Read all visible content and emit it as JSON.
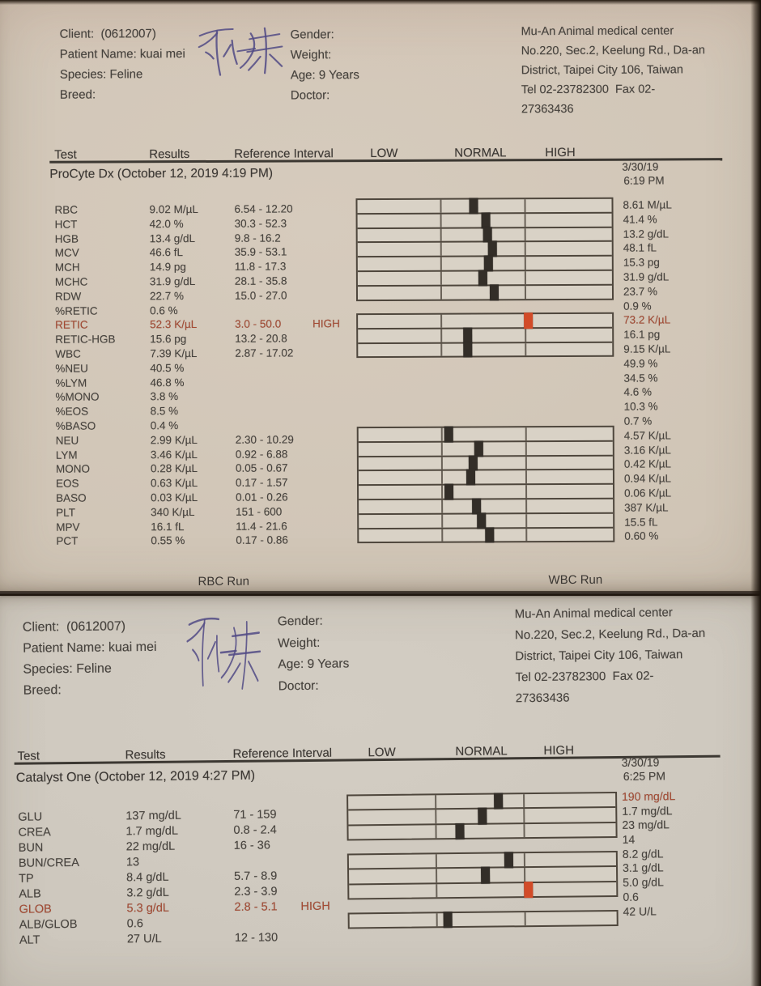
{
  "report": {
    "pages": [
      {
        "analyzer": "ProCyte Dx",
        "patient_left": [
          "Client:  (0612007)",
          "Patient Name: kuai mei",
          "Species: Feline",
          "Breed:"
        ],
        "patient_mid": [
          "Gender:",
          "Weight:",
          "Age: 9 Years",
          "Doctor:"
        ],
        "handwriting": "乖妹",
        "clinic": [
          "Mu-An Animal medical center",
          "No.220, Sec.2, Keelung Rd., Da-an",
          "District, Taipei City 106, Taiwan",
          "Tel 02-23782300  Fax 02-",
          "27363436"
        ],
        "columns": {
          "test": "Test",
          "results": "Results",
          "reference": "Reference Interval",
          "low": "LOW",
          "normal": "NORMAL",
          "high": "HIGH"
        },
        "panel_title": "ProCyte Dx (October 12, 2019 4:19 PM)",
        "previous": {
          "date": "3/30/19",
          "time": "6:19 PM"
        },
        "rows": [
          {
            "test": "RBC",
            "result": "9.02 M/µL",
            "ref": "6.54 - 12.20",
            "flag": "",
            "prev": "8.61 M/µL"
          },
          {
            "test": "HCT",
            "result": "42.0 %",
            "ref": "30.3 - 52.3",
            "flag": "",
            "prev": "41.4 %"
          },
          {
            "test": "HGB",
            "result": "13.4 g/dL",
            "ref": "9.8 - 16.2",
            "flag": "",
            "prev": "13.2 g/dL"
          },
          {
            "test": "MCV",
            "result": "46.6 fL",
            "ref": "35.9 - 53.1",
            "flag": "",
            "prev": "48.1 fL"
          },
          {
            "test": "MCH",
            "result": "14.9 pg",
            "ref": "11.8 - 17.3",
            "flag": "",
            "prev": "15.3 pg"
          },
          {
            "test": "MCHC",
            "result": "31.9 g/dL",
            "ref": "28.1 - 35.8",
            "flag": "",
            "prev": "31.9 g/dL"
          },
          {
            "test": "RDW",
            "result": "22.7 %",
            "ref": "15.0 - 27.0",
            "flag": "",
            "prev": "23.7 %"
          },
          {
            "test": "%RETIC",
            "result": "0.6 %",
            "ref": "",
            "flag": "",
            "prev": "0.9 %"
          },
          {
            "test": "RETIC",
            "result": "52.3 K/µL",
            "ref": "3.0 - 50.0",
            "flag": "HIGH",
            "prev": "73.2 K/µL",
            "alert": true,
            "prev_alert": true
          },
          {
            "test": "RETIC-HGB",
            "result": "15.6 pg",
            "ref": "13.2 - 20.8",
            "flag": "",
            "prev": "16.1 pg"
          },
          {
            "test": "WBC",
            "result": "7.39 K/µL",
            "ref": "2.87 - 17.02",
            "flag": "",
            "prev": "9.15 K/µL"
          },
          {
            "test": "%NEU",
            "result": "40.5 %",
            "ref": "",
            "flag": "",
            "prev": "49.9 %"
          },
          {
            "test": "%LYM",
            "result": "46.8 %",
            "ref": "",
            "flag": "",
            "prev": "34.5 %"
          },
          {
            "test": "%MONO",
            "result": "3.8 %",
            "ref": "",
            "flag": "",
            "prev": "4.6 %"
          },
          {
            "test": "%EOS",
            "result": "8.5 %",
            "ref": "",
            "flag": "",
            "prev": "10.3 %"
          },
          {
            "test": "%BASO",
            "result": "0.4 %",
            "ref": "",
            "flag": "",
            "prev": "0.7 %"
          },
          {
            "test": "NEU",
            "result": "2.99 K/µL",
            "ref": "2.30 - 10.29",
            "flag": "",
            "prev": "4.57 K/µL"
          },
          {
            "test": "LYM",
            "result": "3.46 K/µL",
            "ref": "0.92 - 6.88",
            "flag": "",
            "prev": "3.16 K/µL"
          },
          {
            "test": "MONO",
            "result": "0.28 K/µL",
            "ref": "0.05 - 0.67",
            "flag": "",
            "prev": "0.42 K/µL"
          },
          {
            "test": "EOS",
            "result": "0.63 K/µL",
            "ref": "0.17 - 1.57",
            "flag": "",
            "prev": "0.94 K/µL"
          },
          {
            "test": "BASO",
            "result": "0.03 K/µL",
            "ref": "0.01 - 0.26",
            "flag": "",
            "prev": "0.06 K/µL"
          },
          {
            "test": "PLT",
            "result": "340 K/µL",
            "ref": "151 - 600",
            "flag": "",
            "prev": "387 K/µL"
          },
          {
            "test": "MPV",
            "result": "16.1 fL",
            "ref": "11.4 - 21.6",
            "flag": "",
            "prev": "15.5 fL"
          },
          {
            "test": "PCT",
            "result": "0.55 %",
            "ref": "0.17 - 0.86",
            "flag": "",
            "prev": "0.60 %"
          }
        ],
        "bar_groups": [
          {
            "bars": [
              {
                "pos": 0.456
              },
              {
                "pos": 0.503
              },
              {
                "pos": 0.509
              },
              {
                "pos": 0.528
              },
              {
                "pos": 0.513
              },
              {
                "pos": 0.491
              },
              {
                "pos": 0.535
              }
            ]
          },
          {
            "bars": [
              {
                "pos": 0.67,
                "alert": true
              },
              {
                "pos": 0.431
              },
              {
                "pos": 0.431
              }
            ]
          },
          {
            "bars": [
              {
                "pos": 0.355
              },
              {
                "pos": 0.472
              },
              {
                "pos": 0.45
              },
              {
                "pos": 0.44
              },
              {
                "pos": 0.355
              },
              {
                "pos": 0.462
              },
              {
                "pos": 0.481
              },
              {
                "pos": 0.513
              }
            ]
          }
        ],
        "footer": {
          "left": "RBC Run",
          "right": "WBC Run"
        }
      },
      {
        "analyzer": "Catalyst One",
        "patient_left": [
          "Client:  (0612007)",
          "Patient Name: kuai mei",
          "Species: Feline",
          "Breed:"
        ],
        "patient_mid": [
          "Gender:",
          "Weight:",
          "Age: 9 Years",
          "Doctor:"
        ],
        "handwriting": "乖妹",
        "clinic": [
          "Mu-An Animal medical center",
          "No.220, Sec.2, Keelung Rd., Da-an",
          "District, Taipei City 106, Taiwan",
          "Tel 02-23782300  Fax 02-",
          "27363436"
        ],
        "columns": {
          "test": "Test",
          "results": "Results",
          "reference": "Reference Interval",
          "low": "LOW",
          "normal": "NORMAL",
          "high": "HIGH"
        },
        "panel_title": "Catalyst One (October 12, 2019 4:27 PM)",
        "previous": {
          "date": "3/30/19",
          "time": "6:25 PM"
        },
        "rows": [
          {
            "test": "GLU",
            "result": "137 mg/dL",
            "ref": "71 - 159",
            "flag": "",
            "prev": "190 mg/dL",
            "prev_alert": true
          },
          {
            "test": "CREA",
            "result": "1.7 mg/dL",
            "ref": "0.8 - 2.4",
            "flag": "",
            "prev": "1.7 mg/dL"
          },
          {
            "test": "BUN",
            "result": "22 mg/dL",
            "ref": "16 - 36",
            "flag": "",
            "prev": "23 mg/dL"
          },
          {
            "test": "BUN/CREA",
            "result": "13",
            "ref": "",
            "flag": "",
            "prev": "14"
          },
          {
            "test": "TP",
            "result": "8.4 g/dL",
            "ref": "5.7 - 8.9",
            "flag": "",
            "prev": "8.2 g/dL"
          },
          {
            "test": "ALB",
            "result": "3.2 g/dL",
            "ref": "2.3 - 3.9",
            "flag": "",
            "prev": "3.1 g/dL"
          },
          {
            "test": "GLOB",
            "result": "5.3 g/dL",
            "ref": "2.8 - 5.1",
            "flag": "HIGH",
            "prev": "5.0 g/dL",
            "alert": true
          },
          {
            "test": "ALB/GLOB",
            "result": "0.6",
            "ref": "",
            "flag": "",
            "prev": "0.6"
          },
          {
            "test": "ALT",
            "result": "27 U/L",
            "ref": "12 - 130",
            "flag": "",
            "prev": "42 U/L"
          }
        ],
        "bar_groups": [
          {
            "bars": [
              {
                "pos": 0.56
              },
              {
                "pos": 0.5
              },
              {
                "pos": 0.416
              }
            ]
          },
          {
            "bars": [
              {
                "pos": 0.596
              },
              {
                "pos": 0.509
              },
              {
                "pos": 0.671,
                "alert": true
              }
            ]
          },
          {
            "bars": [
              {
                "pos": 0.368
              }
            ]
          }
        ]
      }
    ]
  },
  "colors": {
    "alert_text": "#a54a33",
    "alert_marker": "#d24b28",
    "marker": "#332e28",
    "ink": "#514a85"
  }
}
